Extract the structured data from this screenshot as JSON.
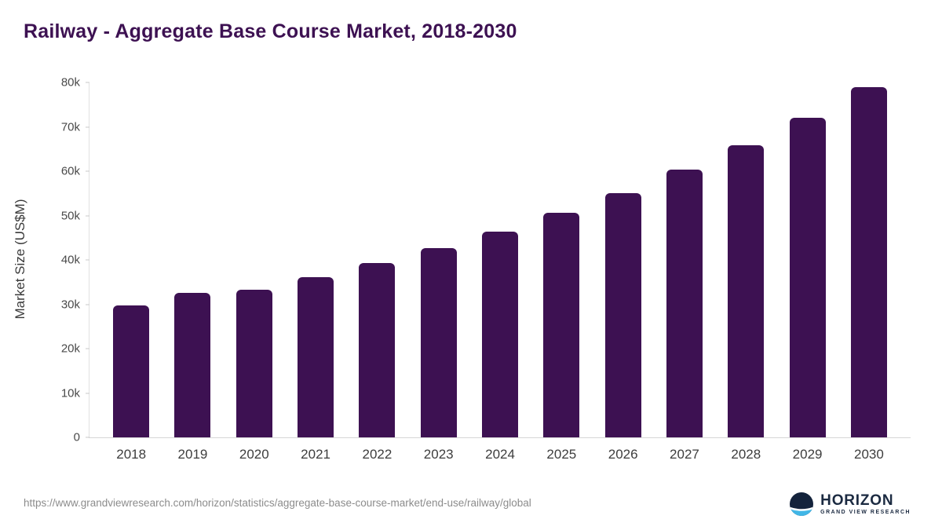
{
  "title": "Railway - Aggregate Base Course Market, 2018-2030",
  "footer": {
    "source_url": "https://www.grandviewresearch.com/horizon/statistics/aggregate-base-course-market/end-use/railway/global"
  },
  "logo": {
    "name": "HORIZON",
    "subtitle": "GRAND VIEW RESEARCH"
  },
  "colors": {
    "bar": "#3d1152",
    "title": "#3d1152",
    "axis_text": "#3d3d3d",
    "source_text": "#8c8c8c",
    "logo_navy": "#14233c",
    "logo_blue": "#41b6e6"
  },
  "chart_data": {
    "type": "bar",
    "title": "Railway - Aggregate Base Course Market, 2018-2030",
    "xlabel": "",
    "ylabel": "Market Size (US$M)",
    "categories": [
      "2018",
      "2019",
      "2020",
      "2021",
      "2022",
      "2023",
      "2024",
      "2025",
      "2026",
      "2027",
      "2028",
      "2029",
      "2030"
    ],
    "values": [
      29800,
      32600,
      33300,
      36100,
      39300,
      42600,
      46400,
      50600,
      55100,
      60300,
      65900,
      72100,
      79000
    ],
    "ylim": [
      0,
      80000
    ],
    "yticks": {
      "values": [
        0,
        10000,
        20000,
        30000,
        40000,
        50000,
        60000,
        70000,
        80000
      ],
      "labels": [
        "0",
        "10k",
        "20k",
        "30k",
        "40k",
        "50k",
        "60k",
        "70k",
        "80k"
      ]
    },
    "grid": false,
    "legend": "none",
    "bar_color": "#3d1152"
  }
}
